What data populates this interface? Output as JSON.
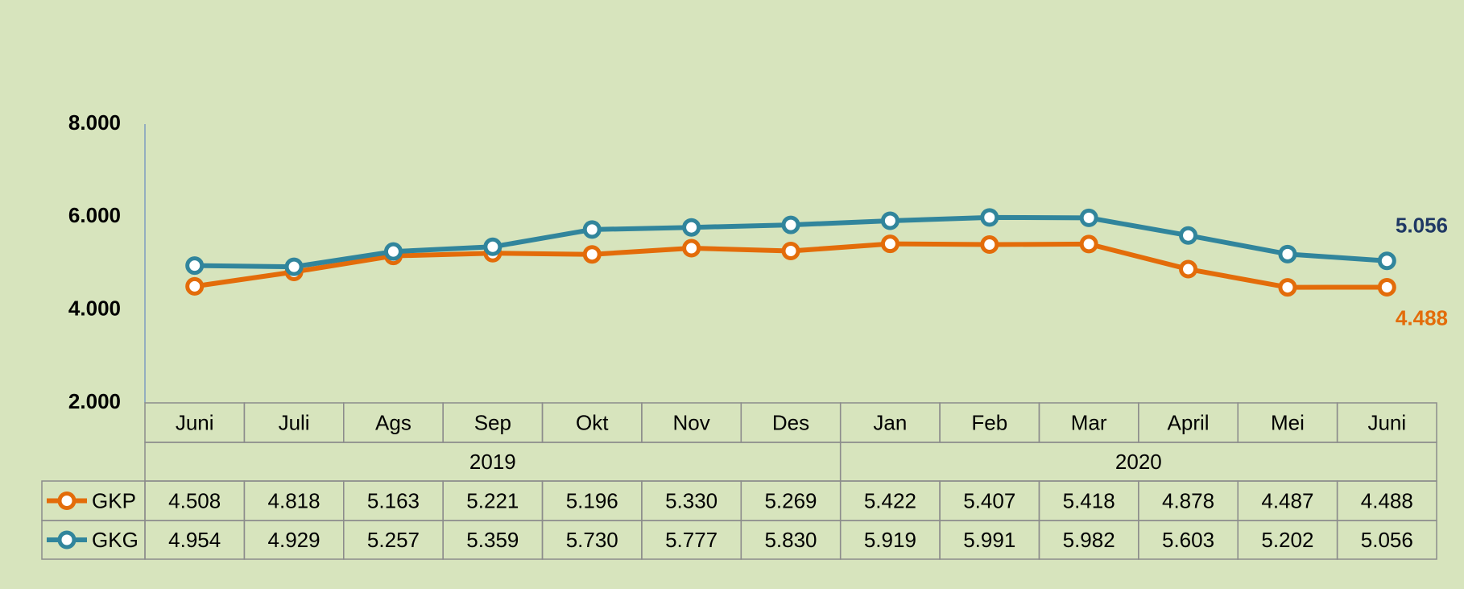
{
  "chart_data": {
    "type": "line",
    "categories": [
      "Juni",
      "Juli",
      "Ags",
      "Sep",
      "Okt",
      "Nov",
      "Des",
      "Jan",
      "Feb",
      "Mar",
      "April",
      "Mei",
      "Juni"
    ],
    "years": [
      "2019",
      "2019",
      "2019",
      "2019",
      "2019",
      "2019",
      "2019",
      "2020",
      "2020",
      "2020",
      "2020",
      "2020",
      "2020"
    ],
    "series": [
      {
        "name": "GKP",
        "color": "#e36c0a",
        "label_color": "#e36c0a",
        "values": [
          4508,
          4818,
          5163,
          5221,
          5196,
          5330,
          5269,
          5422,
          5407,
          5418,
          4878,
          4487,
          4488
        ],
        "value_labels": [
          "4.508",
          "4.818",
          "5.163",
          "5.221",
          "5.196",
          "5.330",
          "5.269",
          "5.422",
          "5.407",
          "5.418",
          "4.878",
          "4.487",
          "4.488"
        ]
      },
      {
        "name": "GKG",
        "color": "#31859c",
        "label_color": "#1f3864",
        "values": [
          4954,
          4929,
          5257,
          5359,
          5730,
          5777,
          5830,
          5919,
          5991,
          5982,
          5603,
          5202,
          5056
        ],
        "value_labels": [
          "4.954",
          "4.929",
          "5.257",
          "5.359",
          "5.730",
          "5.777",
          "5.830",
          "5.919",
          "5.991",
          "5.982",
          "5.603",
          "5.202",
          "5.056"
        ]
      }
    ],
    "ylim": [
      2000,
      8000
    ],
    "yticks": [
      {
        "value": 2000,
        "label": "2.000"
      },
      {
        "value": 4000,
        "label": "4.000"
      },
      {
        "value": 6000,
        "label": "6.000"
      },
      {
        "value": 8000,
        "label": "8.000"
      }
    ],
    "grid": false
  }
}
